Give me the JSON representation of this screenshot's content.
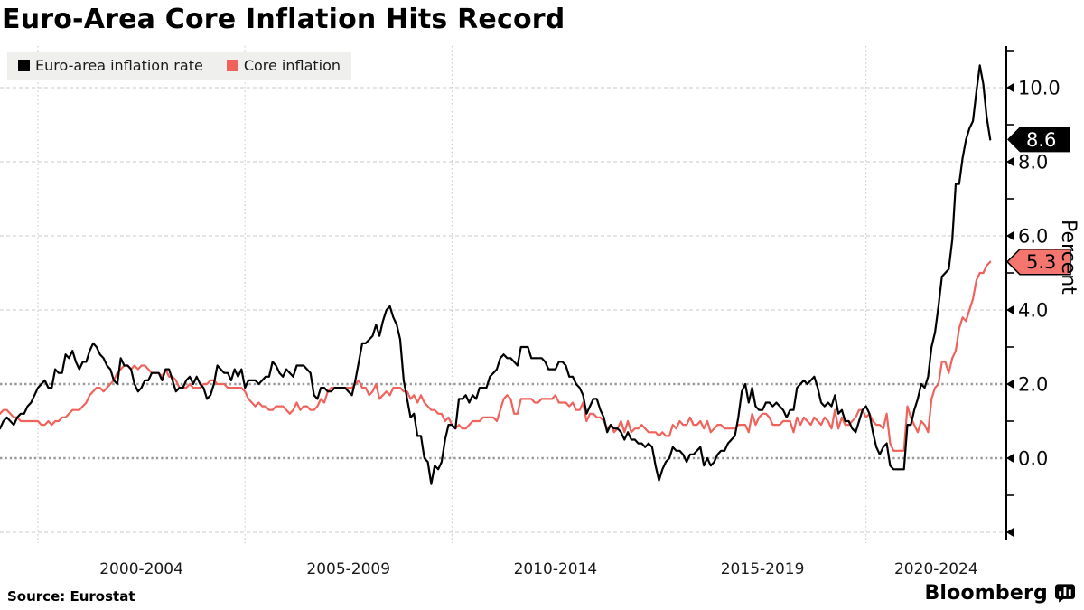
{
  "source_text": "Source: Eurostat",
  "brand": "Bloomberg",
  "chart_data": {
    "type": "line",
    "title": "Euro-Area Core Inflation Hits Record",
    "ylabel": "Percent",
    "xlabel": "",
    "legend_position": "top-left",
    "grid": true,
    "x_start_year": 1999.0,
    "x_step_years": 0.0833333,
    "x_end_year": 2023.0,
    "ylim": [
      -2,
      11.1
    ],
    "x_axis": {
      "gridline_years": [
        2000,
        2005,
        2010,
        2015,
        2020
      ],
      "tick_labels": [
        "2000-2004",
        "2005-2009",
        "2010-2014",
        "2015-2019",
        "2020-2024"
      ]
    },
    "y_axis": {
      "major_ticks": [
        {
          "value": 10,
          "label": "10.0"
        },
        {
          "value": 8,
          "label": "8.0"
        },
        {
          "value": 6,
          "label": "6.0"
        },
        {
          "value": 4,
          "label": "4.0"
        },
        {
          "value": 2,
          "label": "2.0"
        },
        {
          "value": 0,
          "label": "0.0"
        },
        {
          "value": -2,
          "label": ""
        }
      ],
      "minor_ticks": [
        11,
        9,
        7,
        5,
        3,
        1,
        -1
      ],
      "light_gridlines": [
        10,
        8,
        6,
        4,
        -2
      ],
      "emphasis_gridlines": [
        2,
        0
      ]
    },
    "series": [
      {
        "name": "Euro-area inflation rate",
        "color": "#000000",
        "values": [
          0.8,
          0.8,
          1.0,
          1.1,
          1.0,
          0.9,
          1.1,
          1.2,
          1.2,
          1.4,
          1.5,
          1.7,
          1.9,
          2.0,
          2.1,
          1.9,
          1.9,
          2.4,
          2.3,
          2.3,
          2.8,
          2.7,
          2.9,
          2.6,
          2.4,
          2.6,
          2.6,
          2.9,
          3.1,
          3.0,
          2.8,
          2.7,
          2.5,
          2.4,
          2.1,
          2.0,
          2.7,
          2.5,
          2.5,
          2.4,
          2.0,
          1.8,
          1.9,
          2.1,
          2.1,
          2.3,
          2.3,
          2.3,
          2.1,
          2.4,
          2.4,
          2.1,
          1.8,
          1.9,
          1.9,
          2.1,
          2.2,
          2.0,
          2.2,
          2.0,
          1.9,
          1.6,
          1.7,
          2.0,
          2.5,
          2.4,
          2.3,
          2.3,
          2.1,
          2.4,
          2.2,
          2.4,
          1.9,
          2.1,
          2.1,
          2.1,
          2.0,
          2.1,
          2.2,
          2.2,
          2.6,
          2.5,
          2.3,
          2.2,
          2.4,
          2.3,
          2.2,
          2.5,
          2.5,
          2.5,
          2.4,
          2.3,
          1.7,
          1.6,
          1.9,
          1.9,
          1.8,
          1.8,
          1.9,
          1.9,
          1.9,
          1.9,
          1.8,
          1.7,
          2.1,
          2.6,
          3.1,
          3.1,
          3.2,
          3.3,
          3.6,
          3.3,
          3.7,
          4.0,
          4.1,
          3.8,
          3.6,
          3.2,
          2.1,
          1.6,
          1.1,
          1.2,
          0.6,
          0.6,
          0.0,
          -0.1,
          -0.7,
          -0.2,
          -0.3,
          -0.1,
          0.5,
          0.9,
          0.9,
          0.8,
          1.6,
          1.6,
          1.7,
          1.5,
          1.7,
          1.6,
          1.9,
          1.9,
          1.9,
          2.2,
          2.3,
          2.4,
          2.7,
          2.8,
          2.7,
          2.7,
          2.6,
          2.5,
          3.0,
          3.0,
          3.0,
          2.7,
          2.7,
          2.7,
          2.7,
          2.6,
          2.4,
          2.4,
          2.4,
          2.6,
          2.6,
          2.5,
          2.2,
          2.2,
          2.0,
          1.9,
          1.7,
          1.2,
          1.4,
          1.6,
          1.6,
          1.3,
          1.1,
          0.7,
          0.9,
          0.8,
          0.8,
          0.7,
          0.5,
          0.7,
          0.5,
          0.5,
          0.4,
          0.4,
          0.3,
          0.4,
          0.3,
          -0.2,
          -0.6,
          -0.3,
          -0.1,
          0.0,
          0.3,
          0.2,
          0.2,
          0.1,
          -0.1,
          0.1,
          0.1,
          0.2,
          0.3,
          -0.2,
          0.0,
          -0.2,
          -0.1,
          0.1,
          0.2,
          0.2,
          0.4,
          0.5,
          0.6,
          1.1,
          1.8,
          2.0,
          1.5,
          1.9,
          1.4,
          1.3,
          1.3,
          1.5,
          1.5,
          1.4,
          1.5,
          1.4,
          1.3,
          1.1,
          1.3,
          1.3,
          1.9,
          2.0,
          2.1,
          2.0,
          2.1,
          2.2,
          1.9,
          1.5,
          1.4,
          1.5,
          1.4,
          1.7,
          1.2,
          1.3,
          1.0,
          1.0,
          0.8,
          0.7,
          1.0,
          1.3,
          1.4,
          1.2,
          0.7,
          0.3,
          0.1,
          0.3,
          0.4,
          -0.2,
          -0.3,
          -0.3,
          -0.3,
          -0.3,
          0.9,
          0.9,
          1.3,
          1.6,
          2.0,
          1.9,
          2.2,
          3.0,
          3.4,
          4.1,
          4.9,
          5.0,
          5.1,
          5.9,
          7.4,
          7.4,
          8.1,
          8.6,
          8.9,
          9.1,
          9.9,
          10.6,
          10.1,
          9.2,
          8.6
        ]
      },
      {
        "name": "Core inflation",
        "color": "#f0625c",
        "values": [
          1.3,
          1.2,
          1.3,
          1.3,
          1.2,
          1.1,
          1.1,
          1.0,
          1.0,
          1.0,
          1.0,
          1.0,
          1.0,
          0.9,
          0.9,
          1.0,
          0.9,
          1.0,
          1.0,
          1.1,
          1.1,
          1.2,
          1.3,
          1.3,
          1.3,
          1.4,
          1.5,
          1.7,
          1.8,
          1.9,
          1.9,
          1.8,
          1.9,
          2.0,
          2.1,
          2.3,
          2.4,
          2.5,
          2.5,
          2.4,
          2.5,
          2.4,
          2.5,
          2.5,
          2.4,
          2.3,
          2.3,
          2.3,
          2.2,
          2.4,
          2.2,
          2.2,
          2.1,
          1.9,
          1.9,
          1.9,
          2.0,
          1.9,
          1.9,
          1.9,
          2.0,
          2.0,
          2.1,
          2.1,
          2.0,
          2.0,
          2.0,
          1.9,
          1.9,
          1.9,
          1.9,
          1.9,
          1.8,
          1.6,
          1.5,
          1.4,
          1.5,
          1.4,
          1.4,
          1.3,
          1.3,
          1.4,
          1.4,
          1.4,
          1.3,
          1.2,
          1.3,
          1.5,
          1.3,
          1.4,
          1.4,
          1.3,
          1.3,
          1.4,
          1.6,
          1.5,
          1.8,
          1.9,
          1.9,
          1.9,
          1.9,
          1.9,
          1.9,
          1.9,
          2.0,
          2.1,
          1.9,
          1.9,
          1.7,
          1.8,
          2.0,
          1.6,
          1.7,
          1.8,
          1.7,
          1.9,
          1.9,
          1.9,
          1.8,
          1.8,
          1.6,
          1.7,
          1.5,
          1.7,
          1.5,
          1.4,
          1.3,
          1.3,
          1.2,
          1.2,
          1.0,
          1.1,
          0.9,
          0.8,
          0.9,
          0.8,
          0.8,
          0.9,
          1.0,
          1.0,
          1.0,
          1.1,
          1.1,
          1.1,
          1.1,
          1.0,
          1.3,
          1.6,
          1.7,
          1.6,
          1.2,
          1.2,
          1.6,
          1.6,
          1.6,
          1.6,
          1.5,
          1.5,
          1.6,
          1.6,
          1.6,
          1.6,
          1.7,
          1.5,
          1.5,
          1.5,
          1.4,
          1.5,
          1.3,
          1.3,
          1.5,
          1.0,
          1.2,
          1.2,
          1.1,
          1.1,
          1.0,
          0.8,
          0.9,
          0.7,
          0.8,
          1.0,
          0.7,
          1.0,
          0.7,
          0.8,
          0.8,
          0.9,
          0.8,
          0.7,
          0.7,
          0.7,
          0.6,
          0.7,
          0.6,
          0.6,
          0.9,
          0.8,
          1.0,
          0.9,
          0.9,
          1.1,
          0.9,
          0.9,
          1.0,
          0.8,
          1.0,
          0.7,
          0.8,
          0.9,
          0.9,
          0.8,
          0.8,
          0.8,
          0.8,
          0.9,
          0.9,
          0.9,
          0.7,
          1.2,
          0.9,
          1.1,
          1.2,
          1.2,
          1.1,
          0.9,
          0.9,
          0.9,
          1.0,
          1.0,
          1.0,
          0.7,
          1.1,
          0.9,
          1.1,
          1.0,
          0.9,
          1.1,
          1.0,
          0.9,
          1.1,
          1.0,
          0.8,
          1.3,
          0.8,
          1.1,
          0.9,
          0.9,
          1.0,
          1.1,
          1.3,
          1.3,
          1.1,
          1.2,
          1.0,
          0.9,
          0.9,
          0.8,
          1.2,
          0.4,
          0.2,
          0.2,
          0.2,
          0.2,
          1.4,
          1.1,
          0.9,
          0.7,
          1.0,
          0.9,
          0.7,
          1.6,
          1.9,
          2.0,
          2.6,
          2.6,
          2.3,
          2.7,
          2.9,
          3.5,
          3.8,
          3.7,
          4.0,
          4.3,
          4.8,
          5.0,
          5.0,
          5.2,
          5.3
        ]
      }
    ],
    "callouts": [
      {
        "label": "8.6",
        "value": 8.6,
        "fill": "#000000",
        "text_color": "#ffffff",
        "stroke": ""
      },
      {
        "label": "5.3",
        "value": 5.3,
        "fill": "#f4766f",
        "text_color": "#000000",
        "stroke": "#000000"
      }
    ]
  }
}
